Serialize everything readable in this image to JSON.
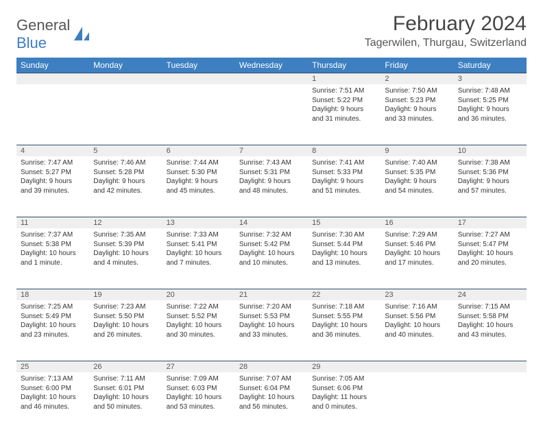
{
  "logo": {
    "line1": "General",
    "line2": "Blue"
  },
  "title": "February 2024",
  "location": "Tagerwilen, Thurgau, Switzerland",
  "colors": {
    "header_bg": "#3d7fc1",
    "header_fg": "#ffffff",
    "daynum_bg": "#efefef",
    "row_border": "#2a4d6e",
    "text": "#333333",
    "title_color": "#444444",
    "logo_gray": "#555555",
    "logo_blue": "#3d7fc1",
    "page_bg": "#ffffff"
  },
  "weekdays": [
    "Sunday",
    "Monday",
    "Tuesday",
    "Wednesday",
    "Thursday",
    "Friday",
    "Saturday"
  ],
  "weeks": [
    [
      null,
      null,
      null,
      null,
      {
        "n": "1",
        "sunrise": "7:51 AM",
        "sunset": "5:22 PM",
        "daylight": "9 hours and 31 minutes."
      },
      {
        "n": "2",
        "sunrise": "7:50 AM",
        "sunset": "5:23 PM",
        "daylight": "9 hours and 33 minutes."
      },
      {
        "n": "3",
        "sunrise": "7:48 AM",
        "sunset": "5:25 PM",
        "daylight": "9 hours and 36 minutes."
      }
    ],
    [
      {
        "n": "4",
        "sunrise": "7:47 AM",
        "sunset": "5:27 PM",
        "daylight": "9 hours and 39 minutes."
      },
      {
        "n": "5",
        "sunrise": "7:46 AM",
        "sunset": "5:28 PM",
        "daylight": "9 hours and 42 minutes."
      },
      {
        "n": "6",
        "sunrise": "7:44 AM",
        "sunset": "5:30 PM",
        "daylight": "9 hours and 45 minutes."
      },
      {
        "n": "7",
        "sunrise": "7:43 AM",
        "sunset": "5:31 PM",
        "daylight": "9 hours and 48 minutes."
      },
      {
        "n": "8",
        "sunrise": "7:41 AM",
        "sunset": "5:33 PM",
        "daylight": "9 hours and 51 minutes."
      },
      {
        "n": "9",
        "sunrise": "7:40 AM",
        "sunset": "5:35 PM",
        "daylight": "9 hours and 54 minutes."
      },
      {
        "n": "10",
        "sunrise": "7:38 AM",
        "sunset": "5:36 PM",
        "daylight": "9 hours and 57 minutes."
      }
    ],
    [
      {
        "n": "11",
        "sunrise": "7:37 AM",
        "sunset": "5:38 PM",
        "daylight": "10 hours and 1 minute."
      },
      {
        "n": "12",
        "sunrise": "7:35 AM",
        "sunset": "5:39 PM",
        "daylight": "10 hours and 4 minutes."
      },
      {
        "n": "13",
        "sunrise": "7:33 AM",
        "sunset": "5:41 PM",
        "daylight": "10 hours and 7 minutes."
      },
      {
        "n": "14",
        "sunrise": "7:32 AM",
        "sunset": "5:42 PM",
        "daylight": "10 hours and 10 minutes."
      },
      {
        "n": "15",
        "sunrise": "7:30 AM",
        "sunset": "5:44 PM",
        "daylight": "10 hours and 13 minutes."
      },
      {
        "n": "16",
        "sunrise": "7:29 AM",
        "sunset": "5:46 PM",
        "daylight": "10 hours and 17 minutes."
      },
      {
        "n": "17",
        "sunrise": "7:27 AM",
        "sunset": "5:47 PM",
        "daylight": "10 hours and 20 minutes."
      }
    ],
    [
      {
        "n": "18",
        "sunrise": "7:25 AM",
        "sunset": "5:49 PM",
        "daylight": "10 hours and 23 minutes."
      },
      {
        "n": "19",
        "sunrise": "7:23 AM",
        "sunset": "5:50 PM",
        "daylight": "10 hours and 26 minutes."
      },
      {
        "n": "20",
        "sunrise": "7:22 AM",
        "sunset": "5:52 PM",
        "daylight": "10 hours and 30 minutes."
      },
      {
        "n": "21",
        "sunrise": "7:20 AM",
        "sunset": "5:53 PM",
        "daylight": "10 hours and 33 minutes."
      },
      {
        "n": "22",
        "sunrise": "7:18 AM",
        "sunset": "5:55 PM",
        "daylight": "10 hours and 36 minutes."
      },
      {
        "n": "23",
        "sunrise": "7:16 AM",
        "sunset": "5:56 PM",
        "daylight": "10 hours and 40 minutes."
      },
      {
        "n": "24",
        "sunrise": "7:15 AM",
        "sunset": "5:58 PM",
        "daylight": "10 hours and 43 minutes."
      }
    ],
    [
      {
        "n": "25",
        "sunrise": "7:13 AM",
        "sunset": "6:00 PM",
        "daylight": "10 hours and 46 minutes."
      },
      {
        "n": "26",
        "sunrise": "7:11 AM",
        "sunset": "6:01 PM",
        "daylight": "10 hours and 50 minutes."
      },
      {
        "n": "27",
        "sunrise": "7:09 AM",
        "sunset": "6:03 PM",
        "daylight": "10 hours and 53 minutes."
      },
      {
        "n": "28",
        "sunrise": "7:07 AM",
        "sunset": "6:04 PM",
        "daylight": "10 hours and 56 minutes."
      },
      {
        "n": "29",
        "sunrise": "7:05 AM",
        "sunset": "6:06 PM",
        "daylight": "11 hours and 0 minutes."
      },
      null,
      null
    ]
  ],
  "labels": {
    "sunrise_prefix": "Sunrise: ",
    "sunset_prefix": "Sunset: ",
    "daylight_prefix": "Daylight: "
  }
}
